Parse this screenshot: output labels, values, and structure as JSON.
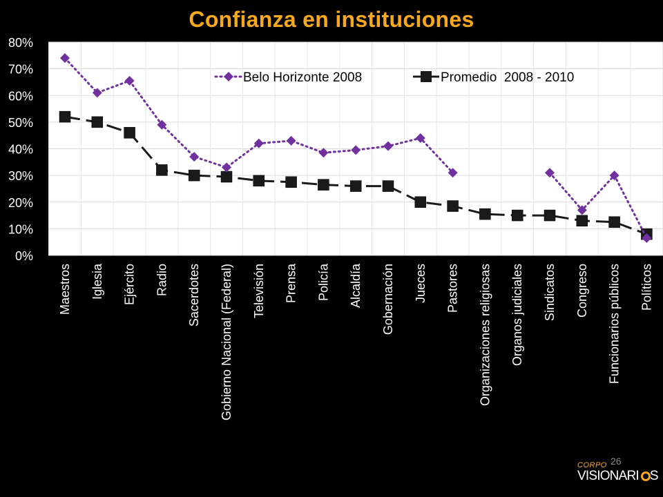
{
  "page": {
    "page_number": "26",
    "logo": {
      "top": "CORPO",
      "bottom": "VISIONARI",
      "suffix": "S"
    }
  },
  "chart_data": {
    "type": "line",
    "title": "Confianza en instituciones",
    "xlabel": "",
    "ylabel": "",
    "ylim": [
      0,
      80
    ],
    "yticks": [
      "0%",
      "10%",
      "20%",
      "30%",
      "40%",
      "50%",
      "60%",
      "70%",
      "80%"
    ],
    "grid": true,
    "legend_position": "top",
    "categories": [
      "Maestros",
      "Iglesia",
      "Ejército",
      "Radio",
      "Sacerdotes",
      "Gobierno Nacional (Federal)",
      "Televisión",
      "Prensa",
      "Policía",
      "Alcaldía",
      "Gobernación",
      "Jueces",
      "Pastores",
      "Organizaciones religiosas",
      "Organos judiciales",
      "Sindicatos",
      "Congreso",
      "Funcionarios públicos",
      "Políticos"
    ],
    "series": [
      {
        "name": "Belo Horizonte 2008",
        "color": "#7030A0",
        "marker": "diamond",
        "line_style": "dotted",
        "values": [
          74,
          61,
          65.5,
          49,
          37,
          33,
          42,
          43,
          38.5,
          39.5,
          41,
          44,
          31,
          null,
          null,
          31,
          17,
          30,
          6.5
        ]
      },
      {
        "name": "Promedio  2008 - 2010",
        "color": "#1a1a1a",
        "marker": "square",
        "line_style": "dashed",
        "values": [
          52,
          50,
          46,
          32,
          30,
          29.5,
          28,
          27.5,
          26.5,
          26,
          26,
          20,
          18.5,
          15.5,
          15,
          15,
          13,
          12.5,
          8
        ]
      }
    ]
  }
}
